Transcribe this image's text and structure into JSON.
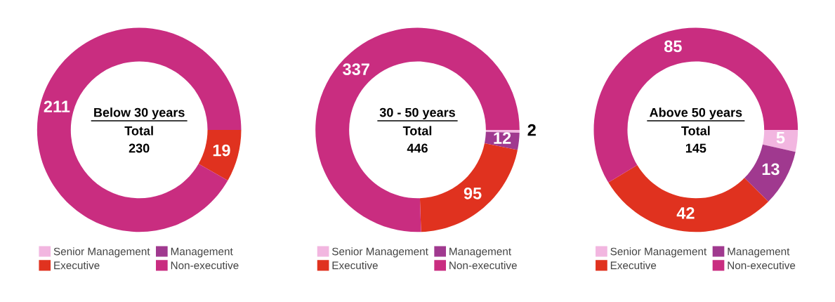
{
  "chart_data": [
    {
      "type": "donut",
      "title": "Below 30 years",
      "annotations": [
        "Total",
        "230"
      ],
      "categories": [
        "Senior Management",
        "Management",
        "Executive",
        "Non-executive"
      ],
      "values": [
        0,
        0,
        19,
        211
      ],
      "value_labels": [
        null,
        null,
        "19",
        "211"
      ],
      "colors": [
        "#f2b6e0",
        "#a0398f",
        "#e0321f",
        "#c92d80"
      ],
      "legend": "bottom"
    },
    {
      "type": "donut",
      "title": "30 - 50 years",
      "annotations": [
        "Total",
        "446"
      ],
      "categories": [
        "Senior Management",
        "Management",
        "Executive",
        "Non-executive"
      ],
      "values": [
        2,
        12,
        95,
        337
      ],
      "value_labels": [
        "2",
        "12",
        "95",
        "337"
      ],
      "colors": [
        "#f2b6e0",
        "#a0398f",
        "#e0321f",
        "#c92d80"
      ],
      "legend": "bottom"
    },
    {
      "type": "donut",
      "title": "Above 50 years",
      "annotations": [
        "Total",
        "145"
      ],
      "categories": [
        "Senior Management",
        "Management",
        "Executive",
        "Non-executive"
      ],
      "values": [
        5,
        13,
        42,
        85
      ],
      "value_labels": [
        "5",
        "13",
        "42",
        "85"
      ],
      "colors": [
        "#f2b6e0",
        "#a0398f",
        "#e0321f",
        "#c92d80"
      ],
      "legend": "bottom"
    }
  ]
}
